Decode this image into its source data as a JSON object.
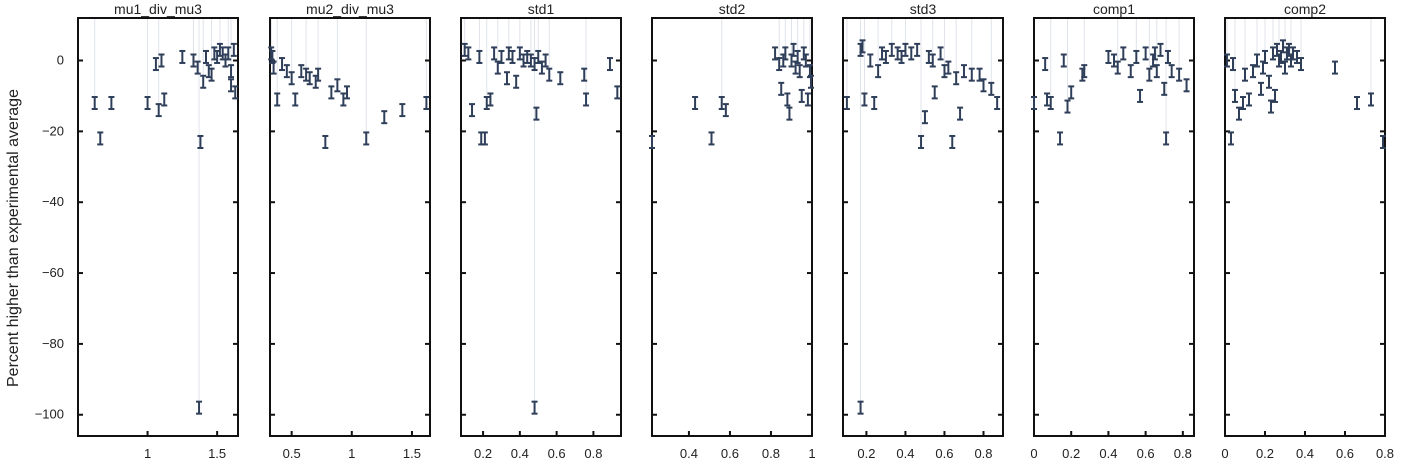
{
  "chart_data": {
    "type": "scatter",
    "ylabel": "Percent higher than experimental average",
    "ylim": [
      -106,
      12
    ],
    "yticks": [
      0,
      -20,
      -40,
      -60,
      -80,
      -100
    ],
    "grid": false,
    "marker": "error-bar",
    "color": "#2f3f5a",
    "subplots": [
      {
        "title": "mu1_div_mu3",
        "xlim": [
          0.5,
          1.65
        ],
        "xticks": [
          1,
          1.5
        ],
        "points": [
          {
            "x": 0.62,
            "y": -12
          },
          {
            "x": 0.66,
            "y": -22
          },
          {
            "x": 0.74,
            "y": -12
          },
          {
            "x": 1.0,
            "y": -12
          },
          {
            "x": 1.06,
            "y": -1
          },
          {
            "x": 1.1,
            "y": 0
          },
          {
            "x": 1.08,
            "y": -14
          },
          {
            "x": 1.12,
            "y": -11
          },
          {
            "x": 1.25,
            "y": 1
          },
          {
            "x": 1.33,
            "y": 0
          },
          {
            "x": 1.36,
            "y": -2
          },
          {
            "x": 1.38,
            "y": -23
          },
          {
            "x": 1.4,
            "y": -6
          },
          {
            "x": 1.42,
            "y": 1
          },
          {
            "x": 1.44,
            "y": -3
          },
          {
            "x": 1.46,
            "y": -4
          },
          {
            "x": 1.48,
            "y": 2
          },
          {
            "x": 1.5,
            "y": 1
          },
          {
            "x": 1.52,
            "y": 3
          },
          {
            "x": 1.54,
            "y": 2
          },
          {
            "x": 1.56,
            "y": 0
          },
          {
            "x": 1.58,
            "y": 2
          },
          {
            "x": 1.6,
            "y": -3
          },
          {
            "x": 1.62,
            "y": 3
          },
          {
            "x": 1.6,
            "y": -7
          },
          {
            "x": 1.63,
            "y": -9
          },
          {
            "x": 1.37,
            "y": -98
          }
        ]
      },
      {
        "title": "mu2_div_mu3",
        "xlim": [
          0.32,
          1.65
        ],
        "xticks": [
          0.5,
          1,
          1.5
        ],
        "points": [
          {
            "x": 0.33,
            "y": 2
          },
          {
            "x": 0.34,
            "y": 1
          },
          {
            "x": 0.35,
            "y": -2
          },
          {
            "x": 0.38,
            "y": -11
          },
          {
            "x": 0.42,
            "y": -1
          },
          {
            "x": 0.46,
            "y": -3
          },
          {
            "x": 0.5,
            "y": -5
          },
          {
            "x": 0.53,
            "y": -11
          },
          {
            "x": 0.58,
            "y": -3
          },
          {
            "x": 0.62,
            "y": -4
          },
          {
            "x": 0.65,
            "y": -5
          },
          {
            "x": 0.7,
            "y": -6
          },
          {
            "x": 0.72,
            "y": -4
          },
          {
            "x": 0.78,
            "y": -23
          },
          {
            "x": 0.83,
            "y": -9
          },
          {
            "x": 0.88,
            "y": -7
          },
          {
            "x": 0.93,
            "y": -11
          },
          {
            "x": 0.96,
            "y": -9
          },
          {
            "x": 1.12,
            "y": -22
          },
          {
            "x": 1.27,
            "y": -16
          },
          {
            "x": 1.42,
            "y": -14
          },
          {
            "x": 1.62,
            "y": -12
          }
        ]
      },
      {
        "title": "std1",
        "xlim": [
          0.08,
          0.95
        ],
        "xticks": [
          0.2,
          0.4,
          0.6,
          0.8
        ],
        "points": [
          {
            "x": 0.1,
            "y": 3
          },
          {
            "x": 0.12,
            "y": 2
          },
          {
            "x": 0.14,
            "y": -14
          },
          {
            "x": 0.18,
            "y": 1
          },
          {
            "x": 0.19,
            "y": -22
          },
          {
            "x": 0.21,
            "y": -22
          },
          {
            "x": 0.22,
            "y": -12
          },
          {
            "x": 0.24,
            "y": -11
          },
          {
            "x": 0.26,
            "y": 2
          },
          {
            "x": 0.28,
            "y": -2
          },
          {
            "x": 0.3,
            "y": 1
          },
          {
            "x": 0.33,
            "y": -5
          },
          {
            "x": 0.34,
            "y": 2
          },
          {
            "x": 0.36,
            "y": 1
          },
          {
            "x": 0.38,
            "y": -6
          },
          {
            "x": 0.4,
            "y": 2
          },
          {
            "x": 0.42,
            "y": 0
          },
          {
            "x": 0.44,
            "y": 1
          },
          {
            "x": 0.46,
            "y": 0
          },
          {
            "x": 0.48,
            "y": -1
          },
          {
            "x": 0.49,
            "y": -15
          },
          {
            "x": 0.5,
            "y": 1
          },
          {
            "x": 0.52,
            "y": -2
          },
          {
            "x": 0.54,
            "y": 0
          },
          {
            "x": 0.56,
            "y": -4
          },
          {
            "x": 0.62,
            "y": -5
          },
          {
            "x": 0.75,
            "y": -4
          },
          {
            "x": 0.76,
            "y": -11
          },
          {
            "x": 0.89,
            "y": -1
          },
          {
            "x": 0.93,
            "y": -9
          },
          {
            "x": 0.48,
            "y": -98
          }
        ]
      },
      {
        "title": "std2",
        "xlim": [
          0.22,
          1.0
        ],
        "xticks": [
          0.4,
          0.6,
          0.8,
          1
        ],
        "points": [
          {
            "x": 0.22,
            "y": -23
          },
          {
            "x": 0.43,
            "y": -12
          },
          {
            "x": 0.51,
            "y": -22
          },
          {
            "x": 0.56,
            "y": -12
          },
          {
            "x": 0.58,
            "y": -14
          },
          {
            "x": 0.82,
            "y": 2
          },
          {
            "x": 0.84,
            "y": -1
          },
          {
            "x": 0.85,
            "y": -8
          },
          {
            "x": 0.86,
            "y": 0
          },
          {
            "x": 0.87,
            "y": 2
          },
          {
            "x": 0.88,
            "y": -11
          },
          {
            "x": 0.89,
            "y": -15
          },
          {
            "x": 0.9,
            "y": 0
          },
          {
            "x": 0.91,
            "y": 3
          },
          {
            "x": 0.92,
            "y": -2
          },
          {
            "x": 0.93,
            "y": 1
          },
          {
            "x": 0.94,
            "y": -3
          },
          {
            "x": 0.95,
            "y": -10
          },
          {
            "x": 0.96,
            "y": 2
          },
          {
            "x": 0.97,
            "y": 0
          },
          {
            "x": 0.98,
            "y": -11
          },
          {
            "x": 0.99,
            "y": -3
          },
          {
            "x": 0.995,
            "y": -6
          }
        ]
      },
      {
        "title": "std3",
        "xlim": [
          0.08,
          0.9
        ],
        "xticks": [
          0.2,
          0.4,
          0.6,
          0.8
        ],
        "points": [
          {
            "x": 0.1,
            "y": -12
          },
          {
            "x": 0.17,
            "y": 3
          },
          {
            "x": 0.18,
            "y": 4
          },
          {
            "x": 0.19,
            "y": -11
          },
          {
            "x": 0.22,
            "y": 0
          },
          {
            "x": 0.24,
            "y": -12
          },
          {
            "x": 0.26,
            "y": -3
          },
          {
            "x": 0.28,
            "y": 2
          },
          {
            "x": 0.3,
            "y": 1
          },
          {
            "x": 0.33,
            "y": 3
          },
          {
            "x": 0.36,
            "y": 2
          },
          {
            "x": 0.38,
            "y": 1
          },
          {
            "x": 0.4,
            "y": 3
          },
          {
            "x": 0.43,
            "y": 2
          },
          {
            "x": 0.46,
            "y": 3
          },
          {
            "x": 0.48,
            "y": -23
          },
          {
            "x": 0.5,
            "y": -16
          },
          {
            "x": 0.52,
            "y": 1
          },
          {
            "x": 0.54,
            "y": 0
          },
          {
            "x": 0.55,
            "y": -9
          },
          {
            "x": 0.58,
            "y": 2
          },
          {
            "x": 0.6,
            "y": -3
          },
          {
            "x": 0.62,
            "y": -2
          },
          {
            "x": 0.64,
            "y": -23
          },
          {
            "x": 0.66,
            "y": -5
          },
          {
            "x": 0.68,
            "y": -15
          },
          {
            "x": 0.7,
            "y": -3
          },
          {
            "x": 0.74,
            "y": -4
          },
          {
            "x": 0.78,
            "y": -4
          },
          {
            "x": 0.8,
            "y": -7
          },
          {
            "x": 0.84,
            "y": -8
          },
          {
            "x": 0.87,
            "y": -12
          },
          {
            "x": 0.17,
            "y": -98
          }
        ]
      },
      {
        "title": "comp1",
        "xlim": [
          0,
          0.86
        ],
        "xticks": [
          0,
          0.2,
          0.4,
          0.6,
          0.8
        ],
        "points": [
          {
            "x": 0.0,
            "y": -12
          },
          {
            "x": 0.06,
            "y": -1
          },
          {
            "x": 0.07,
            "y": -11
          },
          {
            "x": 0.09,
            "y": -12
          },
          {
            "x": 0.14,
            "y": -22
          },
          {
            "x": 0.16,
            "y": 0
          },
          {
            "x": 0.18,
            "y": -13
          },
          {
            "x": 0.2,
            "y": -9
          },
          {
            "x": 0.26,
            "y": -4
          },
          {
            "x": 0.27,
            "y": -3
          },
          {
            "x": 0.4,
            "y": 1
          },
          {
            "x": 0.43,
            "y": 0
          },
          {
            "x": 0.45,
            "y": -2
          },
          {
            "x": 0.48,
            "y": 2
          },
          {
            "x": 0.52,
            "y": -3
          },
          {
            "x": 0.55,
            "y": 1
          },
          {
            "x": 0.57,
            "y": -10
          },
          {
            "x": 0.6,
            "y": 2
          },
          {
            "x": 0.62,
            "y": -4
          },
          {
            "x": 0.64,
            "y": 0
          },
          {
            "x": 0.65,
            "y": 2
          },
          {
            "x": 0.66,
            "y": -3
          },
          {
            "x": 0.68,
            "y": 3
          },
          {
            "x": 0.7,
            "y": -8
          },
          {
            "x": 0.71,
            "y": -22
          },
          {
            "x": 0.72,
            "y": 1
          },
          {
            "x": 0.74,
            "y": -3
          },
          {
            "x": 0.78,
            "y": -4
          },
          {
            "x": 0.82,
            "y": -7
          }
        ]
      },
      {
        "title": "comp2",
        "xlim": [
          0,
          0.8
        ],
        "xticks": [
          0,
          0.2,
          0.4,
          0.6,
          0.8
        ],
        "points": [
          {
            "x": 0.01,
            "y": 0
          },
          {
            "x": 0.03,
            "y": -22
          },
          {
            "x": 0.04,
            "y": -1
          },
          {
            "x": 0.05,
            "y": -10
          },
          {
            "x": 0.07,
            "y": -15
          },
          {
            "x": 0.09,
            "y": -12
          },
          {
            "x": 0.1,
            "y": -4
          },
          {
            "x": 0.12,
            "y": -11
          },
          {
            "x": 0.14,
            "y": -3
          },
          {
            "x": 0.16,
            "y": 0
          },
          {
            "x": 0.18,
            "y": -8
          },
          {
            "x": 0.19,
            "y": -2
          },
          {
            "x": 0.2,
            "y": 1
          },
          {
            "x": 0.22,
            "y": -6
          },
          {
            "x": 0.23,
            "y": -13
          },
          {
            "x": 0.24,
            "y": 2
          },
          {
            "x": 0.25,
            "y": -10
          },
          {
            "x": 0.26,
            "y": 3
          },
          {
            "x": 0.27,
            "y": 0
          },
          {
            "x": 0.28,
            "y": 1
          },
          {
            "x": 0.29,
            "y": 4
          },
          {
            "x": 0.3,
            "y": -2
          },
          {
            "x": 0.31,
            "y": 2
          },
          {
            "x": 0.32,
            "y": 3
          },
          {
            "x": 0.33,
            "y": 0
          },
          {
            "x": 0.34,
            "y": 2
          },
          {
            "x": 0.36,
            "y": 1
          },
          {
            "x": 0.38,
            "y": -1
          },
          {
            "x": 0.55,
            "y": -2
          },
          {
            "x": 0.66,
            "y": -12
          },
          {
            "x": 0.73,
            "y": -11
          },
          {
            "x": 0.79,
            "y": -23
          }
        ]
      }
    ]
  }
}
